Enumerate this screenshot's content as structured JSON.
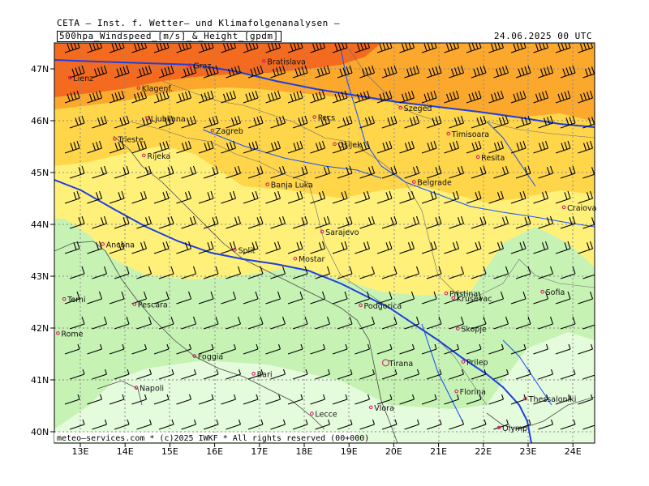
{
  "header": {
    "org": "CETA — Inst. f. Wetter— und Klimafolgenanalysen —",
    "param": "500hpa_Windspeed_[m/s]_&_Height_[gpdm]",
    "datetime": "24.06.2025 00 UTC"
  },
  "footer": {
    "credit": "meteo—services.com * (c)2025 IWKF * All rights reserved (00+000)"
  },
  "axes": {
    "lat_labels": [
      "47N",
      "46N",
      "45N",
      "44N",
      "43N",
      "42N",
      "41N",
      "40N"
    ],
    "lon_labels": [
      "13E",
      "14E",
      "15E",
      "16E",
      "17E",
      "18E",
      "19E",
      "20E",
      "21E",
      "22E",
      "23E",
      "24E"
    ]
  },
  "colors": {
    "strong": "#f46a1e",
    "mid": "#fba82d",
    "low": "#ffd54a",
    "pale": "#fff07a",
    "green": "#c6f3b4",
    "lightgreen": "#e4fbdc",
    "contour": "#1f3fdd",
    "river": "#1a55ff"
  },
  "cities": [
    {
      "name": "Graz",
      "lon": 15.45,
      "lat": 47.07
    },
    {
      "name": "Klagenf.",
      "lon": 14.3,
      "lat": 46.63
    },
    {
      "name": "Lienz",
      "lon": 12.77,
      "lat": 46.83
    },
    {
      "name": "Bratislava",
      "lon": 17.1,
      "lat": 47.15
    },
    {
      "name": "Szeged",
      "lon": 20.15,
      "lat": 46.25
    },
    {
      "name": "Ljubljana",
      "lon": 14.5,
      "lat": 46.05
    },
    {
      "name": "Zagreb",
      "lon": 15.95,
      "lat": 45.81
    },
    {
      "name": "Pecs",
      "lon": 18.23,
      "lat": 46.07
    },
    {
      "name": "Trieste",
      "lon": 13.77,
      "lat": 45.65
    },
    {
      "name": "Rijeka",
      "lon": 14.42,
      "lat": 45.33
    },
    {
      "name": "Osijek",
      "lon": 18.68,
      "lat": 45.55
    },
    {
      "name": "Timisoara",
      "lon": 21.22,
      "lat": 45.75
    },
    {
      "name": "Resita",
      "lon": 21.88,
      "lat": 45.3
    },
    {
      "name": "Split",
      "lon": 16.45,
      "lat": 43.51
    },
    {
      "name": "Banja Luka",
      "lon": 17.18,
      "lat": 44.77
    },
    {
      "name": "Belgrade",
      "lon": 20.45,
      "lat": 44.82
    },
    {
      "name": "Craiova",
      "lon": 23.8,
      "lat": 44.33
    },
    {
      "name": "Sarajevo",
      "lon": 18.4,
      "lat": 43.86
    },
    {
      "name": "Ancona",
      "lon": 13.5,
      "lat": 43.62
    },
    {
      "name": "Mostar",
      "lon": 17.8,
      "lat": 43.34
    },
    {
      "name": "Terni",
      "lon": 12.64,
      "lat": 42.56
    },
    {
      "name": "Pescara",
      "lon": 14.21,
      "lat": 42.46
    },
    {
      "name": "Podgorica",
      "lon": 19.26,
      "lat": 42.44
    },
    {
      "name": "Krusevac",
      "lon": 21.33,
      "lat": 42.58
    },
    {
      "name": "Pristina",
      "lon": 21.17,
      "lat": 42.67
    },
    {
      "name": "Sofia",
      "lon": 23.32,
      "lat": 42.7
    },
    {
      "name": "Rome",
      "lon": 12.5,
      "lat": 41.9
    },
    {
      "name": "Skopje",
      "lon": 21.43,
      "lat": 41.99
    },
    {
      "name": "Foggia",
      "lon": 15.55,
      "lat": 41.46
    },
    {
      "name": "Tirana",
      "lon": 19.82,
      "lat": 41.33
    },
    {
      "name": "Prilep",
      "lon": 21.55,
      "lat": 41.35
    },
    {
      "name": "Bari",
      "lon": 16.87,
      "lat": 41.12
    },
    {
      "name": "Napoli",
      "lon": 14.25,
      "lat": 40.85
    },
    {
      "name": "Florina",
      "lon": 21.4,
      "lat": 40.78
    },
    {
      "name": "Thessaloniki",
      "lon": 22.94,
      "lat": 40.64
    },
    {
      "name": "Vlora",
      "lon": 19.49,
      "lat": 40.47
    },
    {
      "name": "Lecce",
      "lon": 18.17,
      "lat": 40.35
    },
    {
      "name": "Olymp",
      "lon": 22.35,
      "lat": 40.08
    }
  ]
}
